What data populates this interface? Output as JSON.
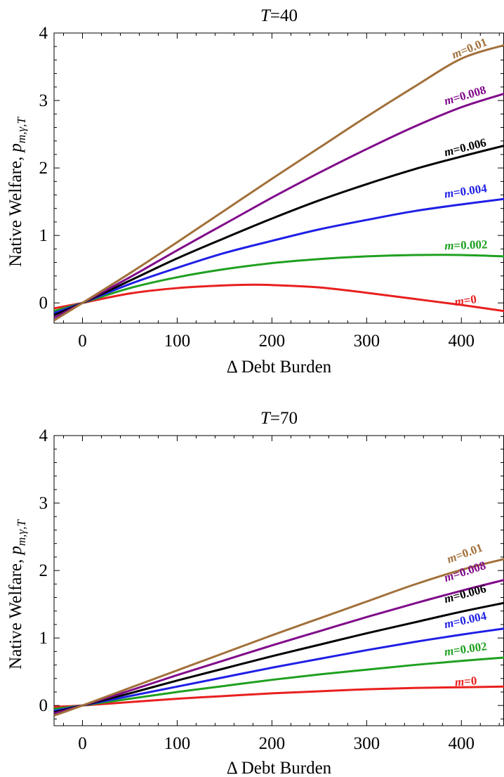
{
  "chart_data": [
    {
      "type": "line",
      "title": "T=40",
      "title_var": "T",
      "title_rest": "=40",
      "xlabel": "Δ Debt Burden",
      "ylabel": "Native Welfare, p",
      "ylabel_sub": "m,γ,T",
      "xlim": [
        -30,
        445
      ],
      "ylim": [
        -0.3,
        4
      ],
      "xticks": [
        "0",
        "100",
        "200",
        "300",
        "400"
      ],
      "yticks": [
        "0",
        "1",
        "2",
        "3",
        "4"
      ],
      "grid": false,
      "series": [
        {
          "name": "m=0",
          "label_var": "m",
          "label_rest": "=0",
          "color": "#e8201e",
          "x": [
            -30,
            0,
            50,
            100,
            150,
            180,
            200,
            250,
            300,
            350,
            400,
            445
          ],
          "y": [
            -0.08,
            0,
            0.14,
            0.22,
            0.26,
            0.27,
            0.265,
            0.23,
            0.15,
            0.06,
            -0.03,
            -0.12
          ]
        },
        {
          "name": "m=0.002",
          "label_var": "m",
          "label_rest": "=0.002",
          "color": "#1fa020",
          "x": [
            -30,
            0,
            50,
            100,
            150,
            200,
            250,
            300,
            350,
            400,
            445
          ],
          "y": [
            -0.12,
            0,
            0.22,
            0.38,
            0.5,
            0.59,
            0.65,
            0.69,
            0.71,
            0.71,
            0.69
          ]
        },
        {
          "name": "m=0.004",
          "label_var": "m",
          "label_rest": "=0.004",
          "color": "#1f1fe6",
          "x": [
            -30,
            0,
            50,
            100,
            150,
            200,
            250,
            300,
            350,
            400,
            445
          ],
          "y": [
            -0.15,
            0,
            0.28,
            0.52,
            0.74,
            0.92,
            1.09,
            1.23,
            1.36,
            1.46,
            1.54
          ]
        },
        {
          "name": "m=0.006",
          "label_var": "m",
          "label_rest": "=0.006",
          "color": "#000000",
          "x": [
            -30,
            0,
            50,
            100,
            150,
            200,
            250,
            300,
            350,
            400,
            445
          ],
          "y": [
            -0.18,
            0,
            0.33,
            0.66,
            0.96,
            1.25,
            1.52,
            1.76,
            1.98,
            2.17,
            2.33
          ]
        },
        {
          "name": "m=0.008",
          "label_var": "m",
          "label_rest": "=0.008",
          "color": "#800a8a",
          "x": [
            -30,
            0,
            50,
            100,
            150,
            200,
            250,
            300,
            350,
            400,
            445
          ],
          "y": [
            -0.22,
            0,
            0.38,
            0.78,
            1.17,
            1.56,
            1.93,
            2.28,
            2.61,
            2.9,
            3.1
          ]
        },
        {
          "name": "m=0.01",
          "label_var": "m",
          "label_rest": "=0.01",
          "color": "#a2703a",
          "x": [
            -30,
            0,
            50,
            100,
            150,
            200,
            250,
            300,
            350,
            400,
            445
          ],
          "y": [
            -0.26,
            0,
            0.44,
            0.9,
            1.37,
            1.84,
            2.3,
            2.76,
            3.2,
            3.62,
            3.82
          ]
        }
      ]
    },
    {
      "type": "line",
      "title": "T=70",
      "title_var": "T",
      "title_rest": "=70",
      "xlabel": "Δ Debt Burden",
      "ylabel": "Native Welfare, p",
      "ylabel_sub": "m,γ,T",
      "xlim": [
        -30,
        445
      ],
      "ylim": [
        -0.3,
        4
      ],
      "xticks": [
        "0",
        "100",
        "200",
        "300",
        "400"
      ],
      "yticks": [
        "0",
        "1",
        "2",
        "3",
        "4"
      ],
      "grid": false,
      "series": [
        {
          "name": "m=0",
          "label_var": "m",
          "label_rest": "=0",
          "color": "#e8201e",
          "x": [
            -30,
            0,
            50,
            100,
            150,
            200,
            250,
            300,
            350,
            400,
            445
          ],
          "y": [
            -0.02,
            0,
            0.05,
            0.1,
            0.14,
            0.18,
            0.21,
            0.24,
            0.26,
            0.27,
            0.28
          ]
        },
        {
          "name": "m=0.002",
          "label_var": "m",
          "label_rest": "=0.002",
          "color": "#1fa020",
          "x": [
            -30,
            0,
            50,
            100,
            150,
            200,
            250,
            300,
            350,
            400,
            445
          ],
          "y": [
            -0.05,
            0,
            0.1,
            0.2,
            0.29,
            0.38,
            0.46,
            0.53,
            0.6,
            0.66,
            0.71
          ]
        },
        {
          "name": "m=0.004",
          "label_var": "m",
          "label_rest": "=0.004",
          "color": "#1f1fe6",
          "x": [
            -30,
            0,
            50,
            100,
            150,
            200,
            250,
            300,
            350,
            400,
            445
          ],
          "y": [
            -0.08,
            0,
            0.14,
            0.28,
            0.42,
            0.56,
            0.69,
            0.82,
            0.94,
            1.05,
            1.14
          ]
        },
        {
          "name": "m=0.006",
          "label_var": "m",
          "label_rest": "=0.006",
          "color": "#000000",
          "x": [
            -30,
            0,
            50,
            100,
            150,
            200,
            250,
            300,
            350,
            400,
            445
          ],
          "y": [
            -0.1,
            0,
            0.18,
            0.37,
            0.55,
            0.73,
            0.9,
            1.07,
            1.23,
            1.39,
            1.52
          ]
        },
        {
          "name": "m=0.008",
          "label_var": "m",
          "label_rest": "=0.008",
          "color": "#800a8a",
          "x": [
            -30,
            0,
            50,
            100,
            150,
            200,
            250,
            300,
            350,
            400,
            445
          ],
          "y": [
            -0.12,
            0,
            0.22,
            0.45,
            0.67,
            0.89,
            1.1,
            1.31,
            1.51,
            1.7,
            1.86
          ]
        },
        {
          "name": "m=0.01",
          "label_var": "m",
          "label_rest": "=0.01",
          "color": "#a2703a",
          "x": [
            -30,
            0,
            50,
            100,
            150,
            200,
            250,
            300,
            350,
            400,
            445
          ],
          "y": [
            -0.15,
            0,
            0.26,
            0.52,
            0.78,
            1.04,
            1.29,
            1.54,
            1.79,
            2.01,
            2.17
          ]
        }
      ]
    }
  ]
}
